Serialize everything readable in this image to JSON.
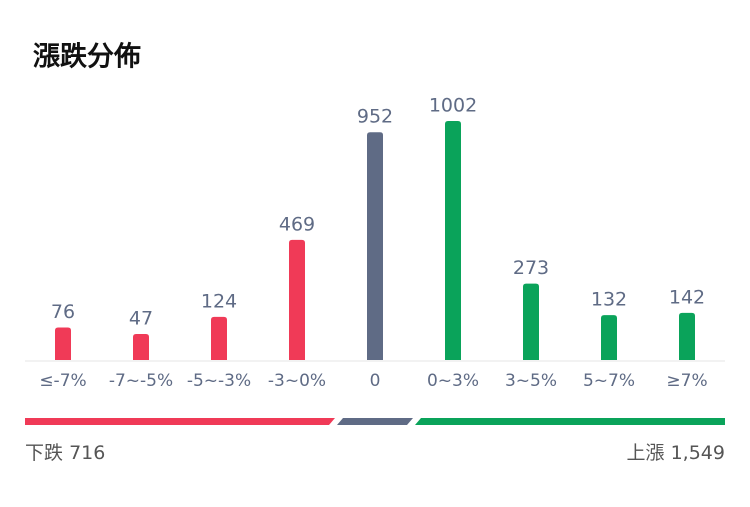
{
  "chart_data": {
    "type": "bar",
    "title": "漲跌分佈",
    "categories": [
      "≤-7%",
      "-7~-5%",
      "-5~-3%",
      "-3~0%",
      "0",
      "0~3%",
      "3~5%",
      "5~7%",
      "≥7%"
    ],
    "values": [
      76,
      47,
      124,
      469,
      952,
      1002,
      273,
      132,
      142
    ],
    "colors": [
      "#f03a57",
      "#f03a57",
      "#f03a57",
      "#f03a57",
      "#5f6b85",
      "#0aa35a",
      "#0aa35a",
      "#0aa35a",
      "#0aa35a"
    ],
    "summary": {
      "down_label": "下跌",
      "down_value": 716,
      "up_label": "上漲",
      "up_value": {
        "value": 1549,
        "label": "1,549"
      }
    }
  }
}
